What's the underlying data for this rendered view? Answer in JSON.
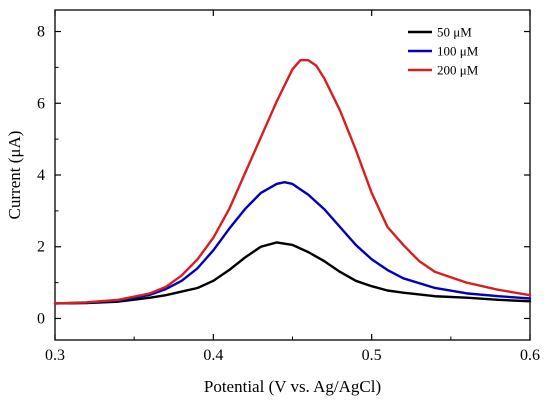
{
  "chart_data": {
    "type": "line",
    "xlabel": "Potential (V vs. Ag/AgCl)",
    "ylabel": "Current (μA)",
    "xlim": [
      0.3,
      0.6
    ],
    "ylim": [
      -0.6,
      8.6
    ],
    "x_ticks": [
      0.3,
      0.4,
      0.5,
      0.6
    ],
    "x_tick_labels": [
      "0.3",
      "0.4",
      "0.5",
      "0.6"
    ],
    "y_ticks": [
      0,
      2,
      4,
      6,
      8
    ],
    "y_tick_labels": [
      "0",
      "2",
      "4",
      "6",
      "8"
    ],
    "grid": false,
    "legend_position": "top-right",
    "series": [
      {
        "name": "50 μM",
        "color": "#000000",
        "points": [
          [
            0.3,
            0.42
          ],
          [
            0.32,
            0.43
          ],
          [
            0.34,
            0.47
          ],
          [
            0.36,
            0.58
          ],
          [
            0.37,
            0.65
          ],
          [
            0.38,
            0.75
          ],
          [
            0.39,
            0.85
          ],
          [
            0.4,
            1.05
          ],
          [
            0.41,
            1.35
          ],
          [
            0.42,
            1.7
          ],
          [
            0.43,
            2.0
          ],
          [
            0.44,
            2.12
          ],
          [
            0.45,
            2.05
          ],
          [
            0.46,
            1.85
          ],
          [
            0.47,
            1.6
          ],
          [
            0.48,
            1.3
          ],
          [
            0.49,
            1.05
          ],
          [
            0.5,
            0.9
          ],
          [
            0.51,
            0.78
          ],
          [
            0.52,
            0.72
          ],
          [
            0.54,
            0.62
          ],
          [
            0.56,
            0.58
          ],
          [
            0.58,
            0.52
          ],
          [
            0.6,
            0.48
          ]
        ]
      },
      {
        "name": "100 μM",
        "color": "#0000b8",
        "points": [
          [
            0.3,
            0.42
          ],
          [
            0.32,
            0.44
          ],
          [
            0.34,
            0.5
          ],
          [
            0.36,
            0.66
          ],
          [
            0.37,
            0.82
          ],
          [
            0.38,
            1.05
          ],
          [
            0.39,
            1.4
          ],
          [
            0.4,
            1.9
          ],
          [
            0.41,
            2.5
          ],
          [
            0.42,
            3.05
          ],
          [
            0.43,
            3.5
          ],
          [
            0.44,
            3.75
          ],
          [
            0.445,
            3.8
          ],
          [
            0.45,
            3.75
          ],
          [
            0.46,
            3.45
          ],
          [
            0.47,
            3.05
          ],
          [
            0.48,
            2.55
          ],
          [
            0.49,
            2.05
          ],
          [
            0.5,
            1.65
          ],
          [
            0.51,
            1.35
          ],
          [
            0.52,
            1.12
          ],
          [
            0.54,
            0.85
          ],
          [
            0.56,
            0.7
          ],
          [
            0.58,
            0.62
          ],
          [
            0.6,
            0.56
          ]
        ]
      },
      {
        "name": "200 μM",
        "color": "#d81e1e",
        "points": [
          [
            0.3,
            0.42
          ],
          [
            0.32,
            0.45
          ],
          [
            0.34,
            0.52
          ],
          [
            0.36,
            0.7
          ],
          [
            0.37,
            0.88
          ],
          [
            0.38,
            1.2
          ],
          [
            0.39,
            1.65
          ],
          [
            0.4,
            2.25
          ],
          [
            0.41,
            3.05
          ],
          [
            0.42,
            4.05
          ],
          [
            0.43,
            5.05
          ],
          [
            0.44,
            6.05
          ],
          [
            0.45,
            6.95
          ],
          [
            0.455,
            7.2
          ],
          [
            0.46,
            7.2
          ],
          [
            0.465,
            7.05
          ],
          [
            0.47,
            6.7
          ],
          [
            0.48,
            5.8
          ],
          [
            0.49,
            4.7
          ],
          [
            0.5,
            3.5
          ],
          [
            0.51,
            2.55
          ],
          [
            0.52,
            2.05
          ],
          [
            0.53,
            1.6
          ],
          [
            0.54,
            1.3
          ],
          [
            0.56,
            1.0
          ],
          [
            0.58,
            0.8
          ],
          [
            0.6,
            0.65
          ]
        ]
      }
    ]
  }
}
